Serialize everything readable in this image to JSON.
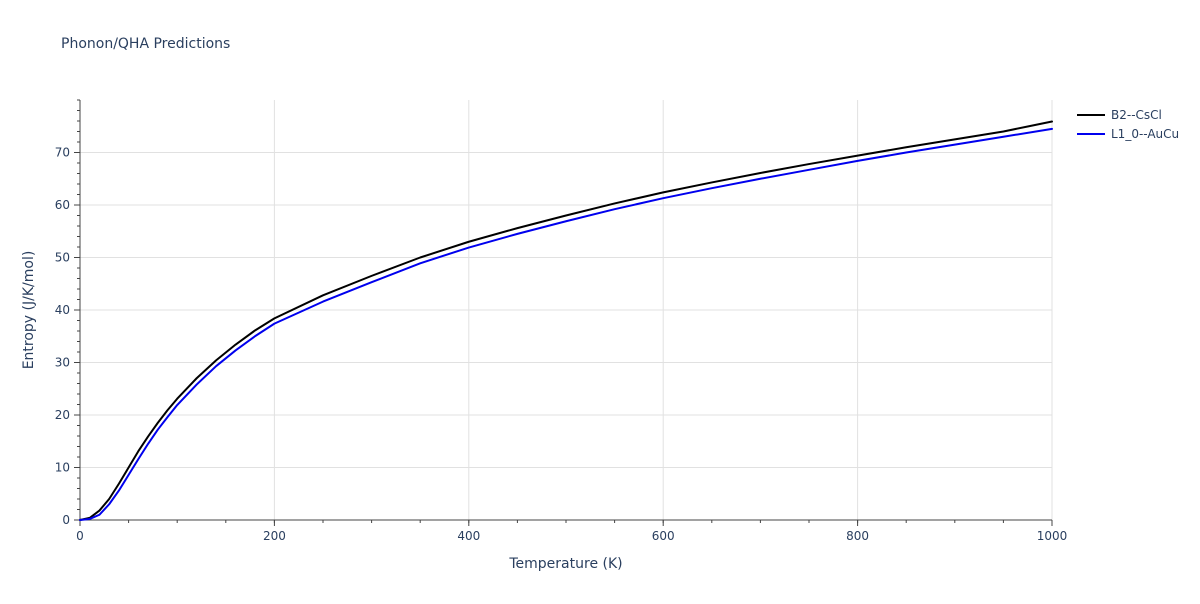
{
  "chart_data": {
    "type": "line",
    "title": "Phonon/QHA Predictions",
    "xlabel": "Temperature (K)",
    "ylabel": "Entropy (J/K/mol)",
    "xlim": [
      0,
      1000
    ],
    "ylim": [
      0,
      80
    ],
    "xticks": [
      0,
      200,
      400,
      600,
      800,
      1000
    ],
    "yticks": [
      0,
      10,
      20,
      30,
      40,
      50,
      60,
      70
    ],
    "grid": true,
    "legend_position": "top-right",
    "series": [
      {
        "name": "B2--CsCl",
        "color": "#000000",
        "x": [
          0,
          10,
          20,
          30,
          40,
          50,
          60,
          70,
          80,
          90,
          100,
          120,
          140,
          160,
          180,
          200,
          250,
          300,
          350,
          400,
          450,
          500,
          550,
          600,
          650,
          700,
          750,
          800,
          850,
          900,
          950,
          1000
        ],
        "y": [
          0,
          0.4,
          1.8,
          4.0,
          6.9,
          10.0,
          13.1,
          15.9,
          18.5,
          20.9,
          23.1,
          27.0,
          30.4,
          33.4,
          36.1,
          38.4,
          42.8,
          46.5,
          50.0,
          53.0,
          55.6,
          58.0,
          60.3,
          62.4,
          64.3,
          66.1,
          67.8,
          69.4,
          71.0,
          72.5,
          74.0,
          75.9
        ]
      },
      {
        "name": "L1_0--AuCu",
        "color": "#0000ee",
        "x": [
          0,
          10,
          20,
          30,
          40,
          50,
          60,
          70,
          80,
          90,
          100,
          120,
          140,
          160,
          180,
          200,
          250,
          300,
          350,
          400,
          450,
          500,
          550,
          600,
          650,
          700,
          750,
          800,
          850,
          900,
          950,
          1000
        ],
        "y": [
          0,
          0.2,
          1.0,
          3.0,
          5.6,
          8.6,
          11.6,
          14.5,
          17.2,
          19.6,
          21.9,
          25.8,
          29.3,
          32.3,
          35.0,
          37.4,
          41.6,
          45.3,
          48.9,
          51.9,
          54.5,
          56.9,
          59.2,
          61.3,
          63.2,
          65.0,
          66.7,
          68.4,
          70.0,
          71.5,
          73.0,
          74.5
        ]
      }
    ]
  }
}
